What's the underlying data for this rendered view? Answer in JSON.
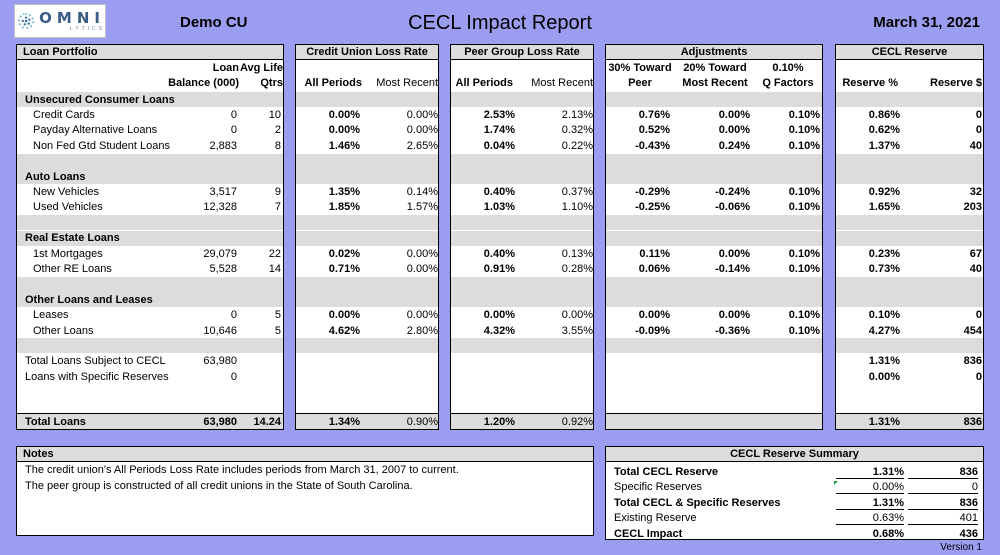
{
  "header": {
    "logo_word": "OMNI",
    "logo_sub": "LYTICS",
    "cu_name": "Demo CU",
    "title": "CECL Impact Report",
    "date": "March 31, 2021"
  },
  "panels": {
    "portfolio": {
      "title": "Loan Portfolio",
      "col_loan": [
        "Loan",
        "Balance (000)"
      ],
      "col_life": [
        "Avg Life",
        "Qtrs"
      ]
    },
    "cu_loss": {
      "title": "Credit Union Loss Rate",
      "col_all": "All Periods",
      "col_recent": "Most Recent"
    },
    "peer_loss": {
      "title": "Peer Group Loss Rate",
      "col_all": "All Periods",
      "col_recent": "Most Recent"
    },
    "adjustments": {
      "title": "Adjustments",
      "col_peer": [
        "30% Toward",
        "Peer"
      ],
      "col_recent": [
        "20% Toward",
        "Most Recent"
      ],
      "col_q": [
        "0.10%",
        "Q Factors"
      ]
    },
    "reserve": {
      "title": "CECL Reserve",
      "col_pct": "Reserve %",
      "col_dol": "Reserve $"
    }
  },
  "groups": [
    {
      "label": "Unsecured Consumer Loans",
      "rows": [
        {
          "name": "Credit Cards",
          "bal": "0",
          "life": "10",
          "cu_all": "0.00%",
          "cu_rec": "0.00%",
          "pg_all": "2.53%",
          "pg_rec": "2.13%",
          "a_peer": "0.76%",
          "a_rec": "0.00%",
          "a_q": "0.10%",
          "res_pct": "0.86%",
          "res_dol": "0"
        },
        {
          "name": "Payday Alternative Loans",
          "bal": "0",
          "life": "2",
          "cu_all": "0.00%",
          "cu_rec": "0.00%",
          "pg_all": "1.74%",
          "pg_rec": "0.32%",
          "a_peer": "0.52%",
          "a_rec": "0.00%",
          "a_q": "0.10%",
          "res_pct": "0.62%",
          "res_dol": "0"
        },
        {
          "name": "Non Fed Gtd Student Loans",
          "bal": "2,883",
          "life": "8",
          "cu_all": "1.46%",
          "cu_rec": "2.65%",
          "pg_all": "0.04%",
          "pg_rec": "0.22%",
          "a_peer": "-0.43%",
          "a_rec": "0.24%",
          "a_q": "0.10%",
          "res_pct": "1.37%",
          "res_dol": "40"
        }
      ]
    },
    {
      "label": "Auto Loans",
      "rows": [
        {
          "name": "New Vehicles",
          "bal": "3,517",
          "life": "9",
          "cu_all": "1.35%",
          "cu_rec": "0.14%",
          "pg_all": "0.40%",
          "pg_rec": "0.37%",
          "a_peer": "-0.29%",
          "a_rec": "-0.24%",
          "a_q": "0.10%",
          "res_pct": "0.92%",
          "res_dol": "32"
        },
        {
          "name": "Used Vehicles",
          "bal": "12,328",
          "life": "7",
          "cu_all": "1.85%",
          "cu_rec": "1.57%",
          "pg_all": "1.03%",
          "pg_rec": "1.10%",
          "a_peer": "-0.25%",
          "a_rec": "-0.06%",
          "a_q": "0.10%",
          "res_pct": "1.65%",
          "res_dol": "203"
        }
      ]
    },
    {
      "label": "Real Estate Loans",
      "rows": [
        {
          "name": "1st Mortgages",
          "bal": "29,079",
          "life": "22",
          "cu_all": "0.02%",
          "cu_rec": "0.00%",
          "pg_all": "0.40%",
          "pg_rec": "0.13%",
          "a_peer": "0.11%",
          "a_rec": "0.00%",
          "a_q": "0.10%",
          "res_pct": "0.23%",
          "res_dol": "67"
        },
        {
          "name": "Other RE Loans",
          "bal": "5,528",
          "life": "14",
          "cu_all": "0.71%",
          "cu_rec": "0.00%",
          "pg_all": "0.91%",
          "pg_rec": "0.28%",
          "a_peer": "0.06%",
          "a_rec": "-0.14%",
          "a_q": "0.10%",
          "res_pct": "0.73%",
          "res_dol": "40"
        }
      ]
    },
    {
      "label": "Other Loans and Leases",
      "rows": [
        {
          "name": "Leases",
          "bal": "0",
          "life": "5",
          "cu_all": "0.00%",
          "cu_rec": "0.00%",
          "pg_all": "0.00%",
          "pg_rec": "0.00%",
          "a_peer": "0.00%",
          "a_rec": "0.00%",
          "a_q": "0.10%",
          "res_pct": "0.10%",
          "res_dol": "0"
        },
        {
          "name": "Other Loans",
          "bal": "10,646",
          "life": "5",
          "cu_all": "4.62%",
          "cu_rec": "2.80%",
          "pg_all": "4.32%",
          "pg_rec": "3.55%",
          "a_peer": "-0.09%",
          "a_rec": "-0.36%",
          "a_q": "0.10%",
          "res_pct": "4.27%",
          "res_dol": "454"
        }
      ]
    }
  ],
  "subtotals": [
    {
      "name": "Total Loans Subject to CECL",
      "bal": "63,980",
      "res_pct": "1.31%",
      "res_dol": "836"
    },
    {
      "name": "Loans with Specific Reserves",
      "bal": "0",
      "res_pct": "0.00%",
      "res_dol": "0"
    }
  ],
  "totals": {
    "name": "Total Loans",
    "bal": "63,980",
    "life": "14.24",
    "cu_all": "1.34%",
    "cu_rec": "0.90%",
    "pg_all": "1.20%",
    "pg_rec": "0.92%",
    "res_pct": "1.31%",
    "res_dol": "836"
  },
  "notes": {
    "title": "Notes",
    "lines": [
      "The credit union's All Periods Loss Rate includes periods from  March 31, 2007 to current.",
      "The peer group is constructed of all credit unions in the State of South Carolina."
    ]
  },
  "summary": {
    "title": "CECL Reserve Summary",
    "rows": [
      {
        "label": "Total CECL Reserve",
        "pct": "1.31%",
        "dol": "836",
        "bold": true
      },
      {
        "label": "Specific Reserves",
        "pct": "0.00%",
        "dol": "0",
        "bold": false
      },
      {
        "label": "Total CECL & Specific Reserves",
        "pct": "1.31%",
        "dol": "836",
        "bold": true
      },
      {
        "label": "Existing Reserve",
        "pct": "0.63%",
        "dol": "401",
        "bold": false
      },
      {
        "label": "CECL Impact",
        "pct": "0.68%",
        "dol": "436",
        "bold": true
      }
    ]
  },
  "version": "Version  1"
}
